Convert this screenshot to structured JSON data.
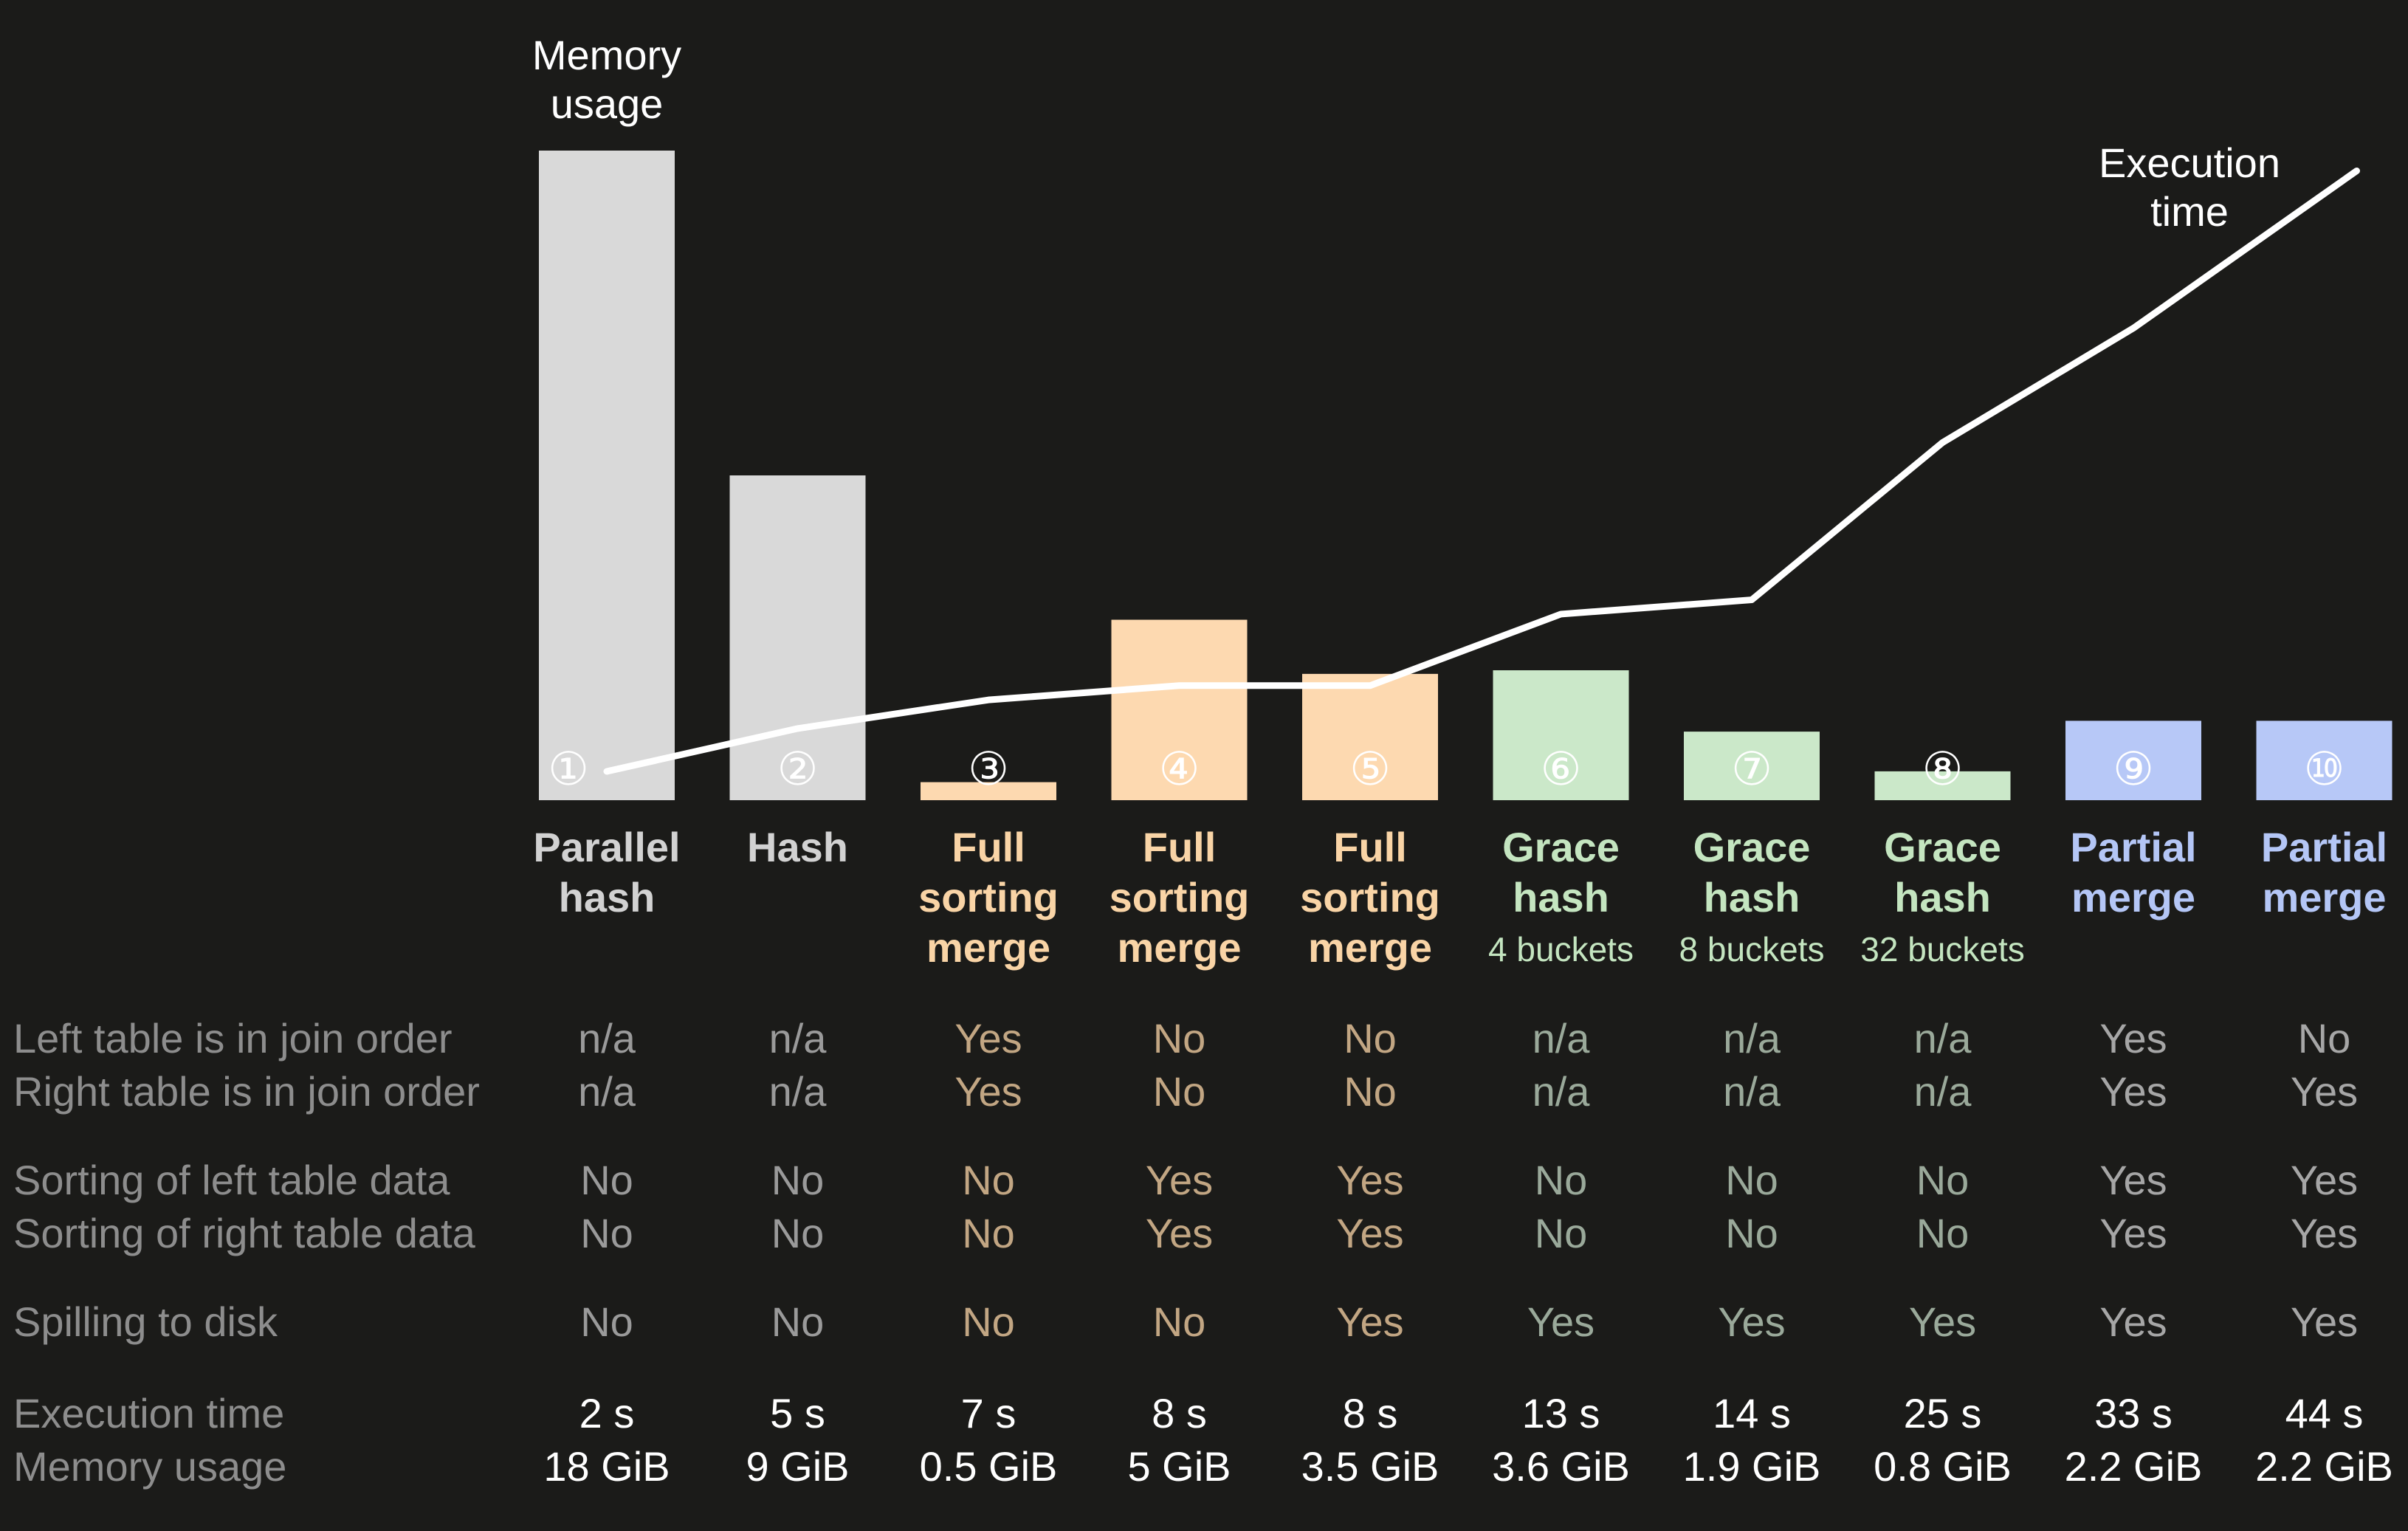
{
  "chart_data": {
    "type": "bar",
    "title": "",
    "annotations": {
      "memory": "Memory\nusage",
      "execution": "Execution\ntime"
    },
    "categories": [
      {
        "num": "①",
        "name": "Parallel\nhash",
        "sub": "",
        "group": "hash"
      },
      {
        "num": "②",
        "name": "Hash",
        "sub": "",
        "group": "hash"
      },
      {
        "num": "③",
        "name": "Full\nsorting\nmerge",
        "sub": "",
        "group": "fsm"
      },
      {
        "num": "④",
        "name": "Full\nsorting\nmerge",
        "sub": "",
        "group": "fsm"
      },
      {
        "num": "⑤",
        "name": "Full\nsorting\nmerge",
        "sub": "",
        "group": "fsm"
      },
      {
        "num": "⑥",
        "name": "Grace\nhash",
        "sub": "4 buckets",
        "group": "grace"
      },
      {
        "num": "⑦",
        "name": "Grace\nhash",
        "sub": "8 buckets",
        "group": "grace"
      },
      {
        "num": "⑧",
        "name": "Grace\nhash",
        "sub": "32 buckets",
        "group": "grace"
      },
      {
        "num": "⑨",
        "name": "Partial\nmerge",
        "sub": "",
        "group": "partial"
      },
      {
        "num": "⑩",
        "name": "Partial\nmerge",
        "sub": "",
        "group": "partial"
      }
    ],
    "series": [
      {
        "name": "Memory usage",
        "unit": "GiB",
        "kind": "bar",
        "values": [
          18,
          9,
          0.5,
          5,
          3.5,
          3.6,
          1.9,
          0.8,
          2.2,
          2.2
        ]
      },
      {
        "name": "Execution time",
        "unit": "s",
        "kind": "line",
        "values": [
          2,
          5,
          7,
          8,
          8,
          13,
          14,
          25,
          33,
          44
        ]
      }
    ],
    "group_colors": {
      "hash": {
        "bar": "#d9d9d9",
        "text": "#d2d2d2",
        "cell": "#9a9a9a"
      },
      "fsm": {
        "bar": "#fdd9b0",
        "text": "#f9d4a6",
        "cell": "#c2a683"
      },
      "grace": {
        "bar": "#cbe8c9",
        "text": "#c4e5c0",
        "cell": "#9aa99a"
      },
      "partial": {
        "bar": "#b7c8f7",
        "text": "#b4c6f6",
        "cell": "#a6a6a6"
      }
    },
    "line_color": "#ffffff",
    "legend": "none",
    "grid": false
  },
  "table": {
    "rows": [
      {
        "label": "Left table is in join order",
        "values": [
          "n/a",
          "n/a",
          "Yes",
          "No",
          "No",
          "n/a",
          "n/a",
          "n/a",
          "Yes",
          "No"
        ]
      },
      {
        "label": "Right table is in join order",
        "values": [
          "n/a",
          "n/a",
          "Yes",
          "No",
          "No",
          "n/a",
          "n/a",
          "n/a",
          "Yes",
          "Yes"
        ]
      },
      {
        "label": "Sorting of left table data",
        "values": [
          "No",
          "No",
          "No",
          "Yes",
          "Yes",
          "No",
          "No",
          "No",
          "Yes",
          "Yes"
        ]
      },
      {
        "label": "Sorting of right table data",
        "values": [
          "No",
          "No",
          "No",
          "Yes",
          "Yes",
          "No",
          "No",
          "No",
          "Yes",
          "Yes"
        ]
      },
      {
        "label": "Spilling to disk",
        "values": [
          "No",
          "No",
          "No",
          "No",
          "Yes",
          "Yes",
          "Yes",
          "Yes",
          "Yes",
          "Yes"
        ]
      },
      {
        "label": "Execution time",
        "values": [
          "2 s",
          "5 s",
          "7 s",
          "8 s",
          "8 s",
          "13 s",
          "14 s",
          "25 s",
          "33 s",
          "44 s"
        ],
        "emphasis": true
      },
      {
        "label": "Memory usage",
        "values": [
          "18 GiB",
          "9 GiB",
          "0.5 GiB",
          "5 GiB",
          "3.5 GiB",
          "3.6 GiB",
          "1.9 GiB",
          "0.8 GiB",
          "2.2 GiB",
          "2.2 GiB"
        ],
        "emphasis": true
      }
    ]
  }
}
